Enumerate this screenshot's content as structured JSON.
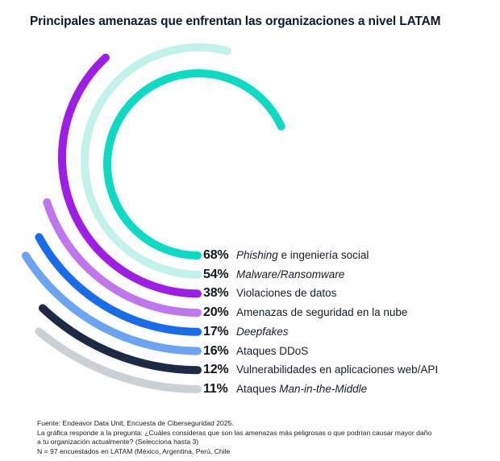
{
  "title": "Principales amenazas que enfrentan las organizaciones a nivel LATAM",
  "chart_data": {
    "type": "radial_bar",
    "unit": "%",
    "value_range": [
      0,
      100
    ],
    "degrees_per_percent": 3.6,
    "direction": "arcs sweep clockwise from bottom (6 o'clock) through left toward top",
    "legend_position": "right-middle, one row per arc at arc end",
    "series": [
      {
        "label": "Phishing e ingeniería social",
        "value": 68,
        "color": "#0ED9C3",
        "label_parts": [
          {
            "text": "Phishing",
            "italic": true
          },
          {
            "text": " e ingeniería social",
            "italic": false
          }
        ]
      },
      {
        "label": "Malware/Ransomware",
        "value": 54,
        "color": "#C2F2E9",
        "label_parts": [
          {
            "text": "Malware/Ransomware",
            "italic": true
          }
        ]
      },
      {
        "label": "Violaciones de datos",
        "value": 38,
        "color": "#9E1EE6",
        "label_parts": [
          {
            "text": "Violaciones de datos",
            "italic": false
          }
        ]
      },
      {
        "label": "Amenazas de seguridad en la nube",
        "value": 20,
        "color": "#C077EC",
        "label_parts": [
          {
            "text": "Amenazas de seguridad en la nube",
            "italic": false
          }
        ]
      },
      {
        "label": "Deepfakes",
        "value": 17,
        "color": "#1A6BE8",
        "label_parts": [
          {
            "text": "Deepfakes",
            "italic": true
          }
        ]
      },
      {
        "label": "Ataques DDoS",
        "value": 16,
        "color": "#6CA4F1",
        "label_parts": [
          {
            "text": "Ataques DDoS",
            "italic": false
          }
        ]
      },
      {
        "label": "Vulnerabilidades en aplicaciones web/API",
        "value": 12,
        "color": "#1E2A45",
        "label_parts": [
          {
            "text": "Vulnerabilidades en aplicaciones web/API",
            "italic": false
          }
        ]
      },
      {
        "label": "Ataques Man-in-the-Middle",
        "value": 11,
        "color": "#CDD0D3",
        "label_parts": [
          {
            "text": "Ataques ",
            "italic": false
          },
          {
            "text": "Man-in-the-Middle",
            "italic": true
          }
        ]
      }
    ]
  },
  "footnotes": [
    "Fuente: Endeavor Data Unit, Encuesta de Ciberseguridad 2025.",
    "La gráfica responde a la pregunta:  ¿Cuáles consideras que son las amenazas más peligrosas o que podrían causar mayor daño a tu organización actualmente? (Selecciona hasta 3)",
    "N = 97 encuestados en LATAM (México, Argentina, Perú, Chile"
  ],
  "colors": {
    "background": "#FFFFFF",
    "title_text": "#12172A",
    "legend_percent_text": "#14161F",
    "legend_label_text": "#191C26",
    "footnote_text": "#1C1C1E"
  }
}
